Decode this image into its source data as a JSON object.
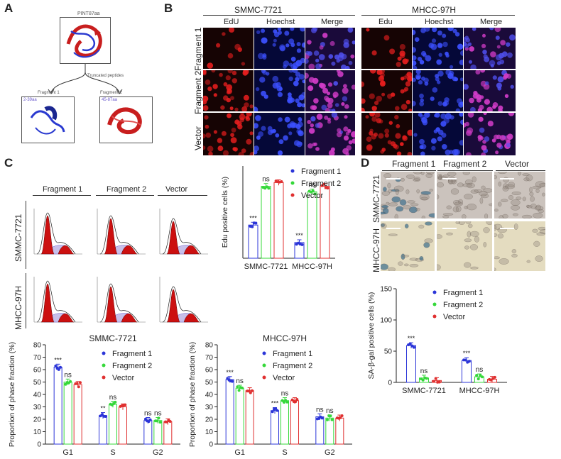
{
  "panels": {
    "a": "A",
    "b": "B",
    "c": "C",
    "d": "D"
  },
  "colors": {
    "blue": "#2b35d8",
    "green": "#35d83a",
    "red": "#e03030",
    "hist_red": "#cc1010"
  },
  "panel_a": {
    "title": "PINT87aa",
    "arrow_label": "Truncated peptides",
    "fragment1_label": "Fragment 1",
    "fragment2_label": "Fragment 2",
    "f1_range": "2-39aa",
    "f2_range": "45-87aa"
  },
  "panel_b": {
    "cell_lines": [
      "SMMC-7721",
      "MHCC-97H"
    ],
    "cols_left": [
      "EdU",
      "Hoechst",
      "Merge"
    ],
    "cols_right": [
      "Edu",
      "Hoechst",
      "Merge"
    ],
    "rows": [
      "Fragment 1",
      "Fragment 2",
      "Vector"
    ]
  },
  "panel_c": {
    "hist_cols": [
      "Fragment 1",
      "Fragment 2",
      "Vector"
    ],
    "hist_rows": [
      "SMMC-7721",
      "MHCC-97H"
    ]
  },
  "panel_d": {
    "cols": [
      "Fragment 1",
      "Fragment 2",
      "Vector"
    ],
    "rows": [
      "SMMC-7721",
      "MHCC-97H"
    ]
  },
  "legend": [
    "Fragment 1",
    "Fragment 2",
    "Vector"
  ],
  "chart_data": [
    {
      "id": "edu",
      "type": "bar",
      "title": "",
      "ylabel": "Edu positive cells (%)",
      "categories": [
        "SMMC-7721",
        "MHCC-97H"
      ],
      "series": [
        {
          "name": "Fragment 1",
          "values": [
            36,
            17
          ],
          "sig": [
            "***",
            "***"
          ]
        },
        {
          "name": "Fragment 2",
          "values": [
            78,
            72
          ],
          "sig": [
            "ns",
            "ns"
          ]
        },
        {
          "name": "Vector",
          "values": [
            82,
            78
          ],
          "sig": [
            "",
            ""
          ]
        }
      ],
      "ylim": [
        0,
        100
      ]
    },
    {
      "id": "smmc_phase",
      "type": "bar",
      "title": "SMMC-7721",
      "ylabel": "Proportion of phase fraction (%)",
      "categories": [
        "G1",
        "S",
        "G2"
      ],
      "yticks": [
        0,
        10,
        20,
        30,
        40,
        50,
        60,
        70,
        80
      ],
      "series": [
        {
          "name": "Fragment 1",
          "values": [
            62,
            23,
            19
          ],
          "sig": [
            "***",
            "**",
            "ns"
          ]
        },
        {
          "name": "Fragment 2",
          "values": [
            50,
            32,
            19
          ],
          "sig": [
            "ns",
            "ns",
            "ns"
          ]
        },
        {
          "name": "Vector",
          "values": [
            48,
            30,
            18
          ],
          "sig": [
            "",
            "",
            ""
          ]
        }
      ],
      "ylim": [
        0,
        80
      ]
    },
    {
      "id": "mhcc_phase",
      "type": "bar",
      "title": "MHCC-97H",
      "ylabel": "Proportion of phase fraction (%)",
      "categories": [
        "G1",
        "S",
        "G2"
      ],
      "yticks": [
        0,
        10,
        20,
        30,
        40,
        50,
        60,
        70,
        80
      ],
      "series": [
        {
          "name": "Fragment 1",
          "values": [
            52,
            27,
            22
          ],
          "sig": [
            "***",
            "***",
            "ns"
          ]
        },
        {
          "name": "Fragment 2",
          "values": [
            45,
            35,
            21
          ],
          "sig": [
            "ns",
            "ns",
            "ns"
          ]
        },
        {
          "name": "Vector",
          "values": [
            43,
            35,
            21
          ],
          "sig": [
            "",
            "",
            ""
          ]
        }
      ],
      "ylim": [
        0,
        80
      ]
    },
    {
      "id": "sabgal",
      "type": "bar",
      "title": "",
      "ylabel": "SA-β-gal positive cells (%)",
      "categories": [
        "SMMC-7721",
        "MHCC-97H"
      ],
      "yticks": [
        0,
        50,
        100,
        150
      ],
      "series": [
        {
          "name": "Fragment 1",
          "values": [
            59,
            35
          ],
          "sig": [
            "***",
            "***"
          ]
        },
        {
          "name": "Fragment 2",
          "values": [
            7,
            9
          ],
          "sig": [
            "ns",
            "ns"
          ]
        },
        {
          "name": "Vector",
          "values": [
            3,
            5
          ],
          "sig": [
            "",
            ""
          ]
        }
      ],
      "ylim": [
        0,
        150
      ]
    }
  ]
}
